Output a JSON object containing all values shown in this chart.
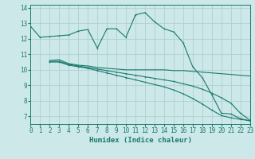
{
  "title": "",
  "xlabel": "Humidex (Indice chaleur)",
  "background_color": "#cce8e8",
  "grid_color": "#b0d0d0",
  "line_color": "#1a7a6e",
  "xlim": [
    0,
    23
  ],
  "ylim": [
    6.5,
    14.2
  ],
  "xticks": [
    0,
    1,
    2,
    3,
    4,
    5,
    6,
    7,
    8,
    9,
    10,
    11,
    12,
    13,
    14,
    15,
    16,
    17,
    18,
    19,
    20,
    21,
    22,
    23
  ],
  "yticks": [
    7,
    8,
    9,
    10,
    11,
    12,
    13,
    14
  ],
  "series": [
    {
      "x": [
        0,
        1,
        2,
        3,
        4,
        5,
        6,
        7,
        8,
        9,
        10,
        11,
        12,
        13,
        14,
        15,
        16,
        17,
        18,
        19,
        20,
        21,
        22,
        23
      ],
      "y": [
        12.8,
        12.1,
        12.15,
        12.2,
        12.25,
        12.5,
        12.6,
        11.4,
        12.65,
        12.65,
        12.1,
        13.55,
        13.7,
        13.1,
        12.65,
        12.45,
        11.75,
        10.2,
        9.5,
        8.4,
        7.2,
        7.15,
        6.85,
        6.7
      ],
      "marker": true
    },
    {
      "x": [
        2,
        3,
        4,
        5,
        6,
        7,
        8,
        9,
        10,
        11,
        12,
        13,
        14,
        15,
        16,
        17,
        18,
        19,
        20,
        21,
        22,
        23
      ],
      "y": [
        10.6,
        10.65,
        10.4,
        10.3,
        10.25,
        10.15,
        10.1,
        10.05,
        10.0,
        10.0,
        10.0,
        10.0,
        10.0,
        9.95,
        9.95,
        9.9,
        9.85,
        9.8,
        9.75,
        9.7,
        9.65,
        9.6
      ],
      "marker": false
    },
    {
      "x": [
        2,
        3,
        4,
        5,
        6,
        7,
        8,
        9,
        10,
        11,
        12,
        13,
        14,
        15,
        16,
        17,
        18,
        19,
        20,
        21,
        22,
        23
      ],
      "y": [
        10.55,
        10.55,
        10.35,
        10.25,
        10.15,
        10.05,
        9.95,
        9.85,
        9.75,
        9.65,
        9.55,
        9.45,
        9.35,
        9.25,
        9.1,
        8.95,
        8.75,
        8.5,
        8.2,
        7.85,
        7.2,
        6.75
      ],
      "marker": true
    },
    {
      "x": [
        2,
        3,
        4,
        5,
        6,
        7,
        8,
        9,
        10,
        11,
        12,
        13,
        14,
        15,
        16,
        17,
        18,
        19,
        20,
        21,
        22,
        23
      ],
      "y": [
        10.5,
        10.5,
        10.3,
        10.2,
        10.1,
        9.95,
        9.8,
        9.65,
        9.5,
        9.35,
        9.2,
        9.05,
        8.9,
        8.7,
        8.45,
        8.15,
        7.8,
        7.4,
        7.05,
        6.9,
        6.8,
        6.72
      ],
      "marker": true
    }
  ]
}
